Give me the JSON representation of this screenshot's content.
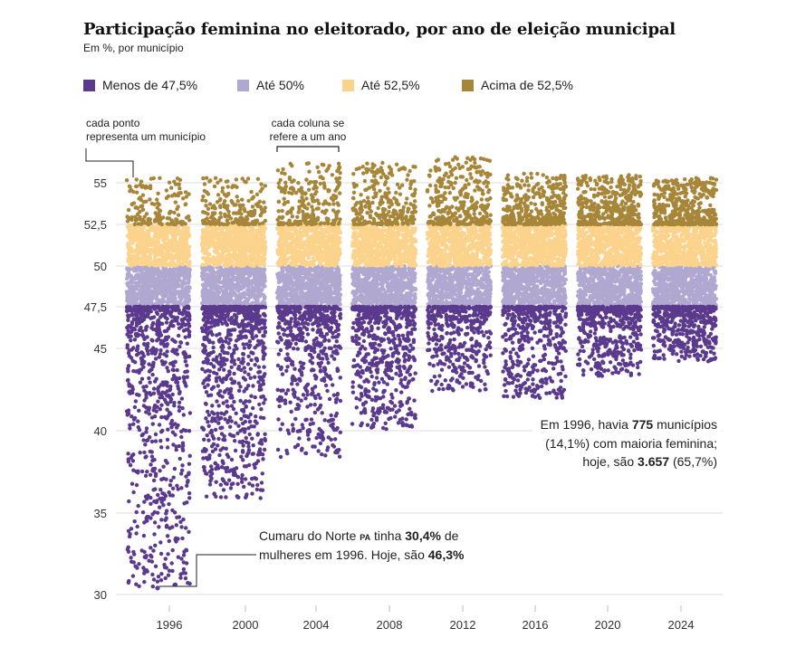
{
  "chart_data": {
    "type": "scatter",
    "title": "Participação feminina no eleitorado, por ano de eleição municipal",
    "subtitle": "Em %, por município",
    "y_ticks": [
      30,
      35,
      40,
      45,
      47.5,
      50,
      52.5,
      55
    ],
    "y_tick_labels": [
      "30",
      "35",
      "40",
      "45",
      "47,5",
      "50",
      "52,5",
      "55"
    ],
    "ylim": [
      29.7,
      56.8
    ],
    "x_categories": [
      1996,
      2000,
      2004,
      2008,
      2012,
      2016,
      2020,
      2024
    ],
    "x_labels": [
      "1996",
      "2000",
      "2004",
      "2008",
      "2012",
      "2016",
      "2020",
      "2024"
    ],
    "grid": true,
    "legend": [
      {
        "label": "Menos de 47,5%",
        "color": "#5b3a8e"
      },
      {
        "label": "Até 50%",
        "color": "#b0a8d0"
      },
      {
        "label": "Até 52,5%",
        "color": "#fbd38c"
      },
      {
        "label": "Acima de 52,5%",
        "color": "#a88639"
      }
    ],
    "columns": [
      {
        "year": 1996,
        "min": 30.4,
        "max": 55.3
      },
      {
        "year": 2000,
        "min": 35.9,
        "max": 55.3
      },
      {
        "year": 2004,
        "min": 38.4,
        "max": 56.2
      },
      {
        "year": 2008,
        "min": 40.1,
        "max": 56.3
      },
      {
        "year": 2012,
        "min": 42.4,
        "max": 56.6
      },
      {
        "year": 2016,
        "min": 41.9,
        "max": 55.6
      },
      {
        "year": 2020,
        "min": 43.3,
        "max": 55.5
      },
      {
        "year": 2024,
        "min": 44.2,
        "max": 55.3
      }
    ],
    "highlight_point": {
      "year": 1996,
      "value": 30.4
    }
  },
  "annotations": {
    "point_note": [
      "cada ponto",
      "representa um município"
    ],
    "column_note": [
      "cada coluna se",
      "refere a um ano"
    ],
    "stats_line1": {
      "pre": "Em 1996, havia ",
      "bold": "775",
      "post": " municípios"
    },
    "stats_line2": "(14,1%) com maioria feminina;",
    "stats_line3": {
      "pre": "hoje, são ",
      "bold": "3.657",
      "post": " (65,7%)"
    },
    "cumaru_line1": {
      "pre": "Cumaru do Norte ",
      "state": "PA",
      "mid": " tinha ",
      "bold": "30,4%",
      "post": " de"
    },
    "cumaru_line2": {
      "pre": "mulheres em 1996. Hoje, são ",
      "bold": "46,3%"
    }
  }
}
